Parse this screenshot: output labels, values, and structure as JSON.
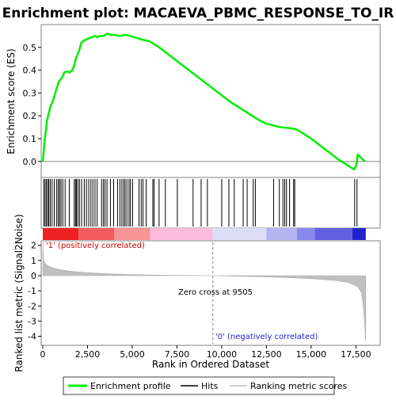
{
  "chart_data": {
    "type": "line",
    "title": "Enrichment plot: MACAEVA_PBMC_RESPONSE_TO_IR",
    "xlabel": "Rank in Ordered Dataset",
    "xlim": [
      0,
      18500
    ],
    "xticks": [
      0,
      2500,
      5000,
      7500,
      10000,
      12500,
      15000,
      17500
    ],
    "xtick_labels": [
      "0",
      "2,500",
      "5,000",
      "7,500",
      "10,000",
      "12,500",
      "15,000",
      "17,500"
    ],
    "es_panel": {
      "ylabel": "Enrichment score (ES)",
      "ylim": [
        -0.07,
        0.6
      ],
      "yticks": [
        0.0,
        0.1,
        0.2,
        0.3,
        0.4,
        0.5
      ],
      "ytick_labels": [
        "0.0",
        "0.1",
        "0.2",
        "0.3",
        "0.4",
        "0.5"
      ],
      "series": [
        {
          "name": "Enrichment profile",
          "color": "#00ee00",
          "x": [
            0,
            60,
            120,
            180,
            240,
            330,
            430,
            560,
            700,
            820,
            900,
            1000,
            1100,
            1200,
            1350,
            1500,
            1650,
            1750,
            1850,
            1950,
            2050,
            2150,
            2300,
            2450,
            2600,
            2750,
            2900,
            3050,
            3200,
            3400,
            3600,
            3800,
            4000,
            4300,
            4600,
            4900,
            5100,
            5300,
            5500,
            5800,
            6000,
            6500,
            7000,
            7500,
            8000,
            8500,
            9000,
            9500,
            10000,
            10500,
            11000,
            11500,
            12000,
            12500,
            12800,
            13000,
            13300,
            13600,
            13900,
            14200,
            14500,
            15000,
            15500,
            16000,
            16500,
            17000,
            17400,
            17500,
            17550,
            17600,
            17800,
            18000
          ],
          "y": [
            0.0,
            0.05,
            0.1,
            0.14,
            0.18,
            0.21,
            0.24,
            0.265,
            0.3,
            0.33,
            0.35,
            0.36,
            0.37,
            0.39,
            0.395,
            0.39,
            0.4,
            0.42,
            0.45,
            0.47,
            0.49,
            0.52,
            0.53,
            0.535,
            0.54,
            0.545,
            0.55,
            0.545,
            0.55,
            0.55,
            0.56,
            0.555,
            0.555,
            0.55,
            0.555,
            0.55,
            0.545,
            0.54,
            0.535,
            0.53,
            0.525,
            0.5,
            0.47,
            0.44,
            0.41,
            0.38,
            0.35,
            0.32,
            0.29,
            0.26,
            0.235,
            0.21,
            0.185,
            0.165,
            0.16,
            0.155,
            0.15,
            0.148,
            0.145,
            0.14,
            0.125,
            0.1,
            0.07,
            0.04,
            0.01,
            -0.015,
            -0.035,
            -0.02,
            -0.005,
            0.03,
            0.015,
            0.0
          ]
        }
      ]
    },
    "hits": {
      "name": "Hits",
      "positions": [
        60,
        130,
        200,
        280,
        340,
        420,
        520,
        640,
        780,
        870,
        940,
        1020,
        1120,
        1250,
        1480,
        1760,
        1830,
        1880,
        1960,
        2050,
        2170,
        2320,
        2440,
        2570,
        2690,
        2800,
        2920,
        3040,
        3290,
        3390,
        3480,
        3590,
        3780,
        3960,
        4180,
        4310,
        4420,
        4520,
        4600,
        4700,
        4820,
        4900,
        5020,
        5380,
        5500,
        5600,
        5780,
        6150,
        6220,
        6500,
        6850,
        7520,
        8400,
        8850,
        9200,
        10000,
        10400,
        10700,
        11200,
        11420,
        11760,
        11880,
        12900,
        13220,
        13420,
        13520,
        13620,
        13790,
        14020,
        14080,
        17430,
        17560
      ]
    },
    "metric_panel": {
      "ylabel": "Ranked list metric (Signal2Noise)",
      "ylim": [
        -4.6,
        2.3
      ],
      "yticks": [
        2,
        1,
        0,
        -1,
        -2,
        -3,
        -4
      ],
      "ytick_labels": [
        "2",
        "1",
        "0",
        "-1",
        "-2",
        "-3",
        "-4"
      ],
      "zero_cross": 9505,
      "zero_cross_label": "Zero cross at 9505",
      "positive_label": "'1' (positively correlated)",
      "negative_label": "'0' (negatively correlated)",
      "series": [
        {
          "name": "Ranking metric scores",
          "color": "#c0c0c0",
          "x": [
            0,
            50,
            150,
            300,
            600,
            1000,
            1500,
            2000,
            3000,
            4000,
            5000,
            6000,
            7000,
            8000,
            9000,
            9505,
            10000,
            11000,
            12000,
            13000,
            14000,
            15000,
            16000,
            16500,
            17000,
            17300,
            17600,
            17800,
            17900,
            17980,
            18050
          ],
          "y": [
            2.2,
            1.0,
            0.8,
            0.65,
            0.5,
            0.38,
            0.3,
            0.24,
            0.16,
            0.11,
            0.07,
            0.04,
            0.02,
            0.01,
            0.003,
            0.0,
            -0.01,
            -0.04,
            -0.07,
            -0.1,
            -0.14,
            -0.2,
            -0.28,
            -0.34,
            -0.44,
            -0.55,
            -0.75,
            -1.1,
            -1.8,
            -3.0,
            -4.3
          ]
        }
      ]
    },
    "heat_bar": {
      "segments": [
        {
          "end": 2000,
          "color": "#ee2222"
        },
        {
          "end": 4000,
          "color": "#f25c5c"
        },
        {
          "end": 6000,
          "color": "#f79494"
        },
        {
          "end": 9500,
          "color": "#fbbbe0"
        },
        {
          "end": 12500,
          "color": "#ddddf8"
        },
        {
          "end": 14200,
          "color": "#b4b4f0"
        },
        {
          "end": 15200,
          "color": "#8888ee"
        },
        {
          "end": 17300,
          "color": "#6060e0"
        },
        {
          "end": 18050,
          "color": "#2222cc"
        }
      ]
    },
    "legend": {
      "placement": "bottom",
      "items": [
        {
          "label": "Enrichment profile",
          "color": "#00ee00",
          "kind": "thick-line"
        },
        {
          "label": "Hits",
          "color": "#000000",
          "kind": "line"
        },
        {
          "label": "Ranking metric scores",
          "color": "#c0c0c0",
          "kind": "line"
        }
      ]
    }
  }
}
